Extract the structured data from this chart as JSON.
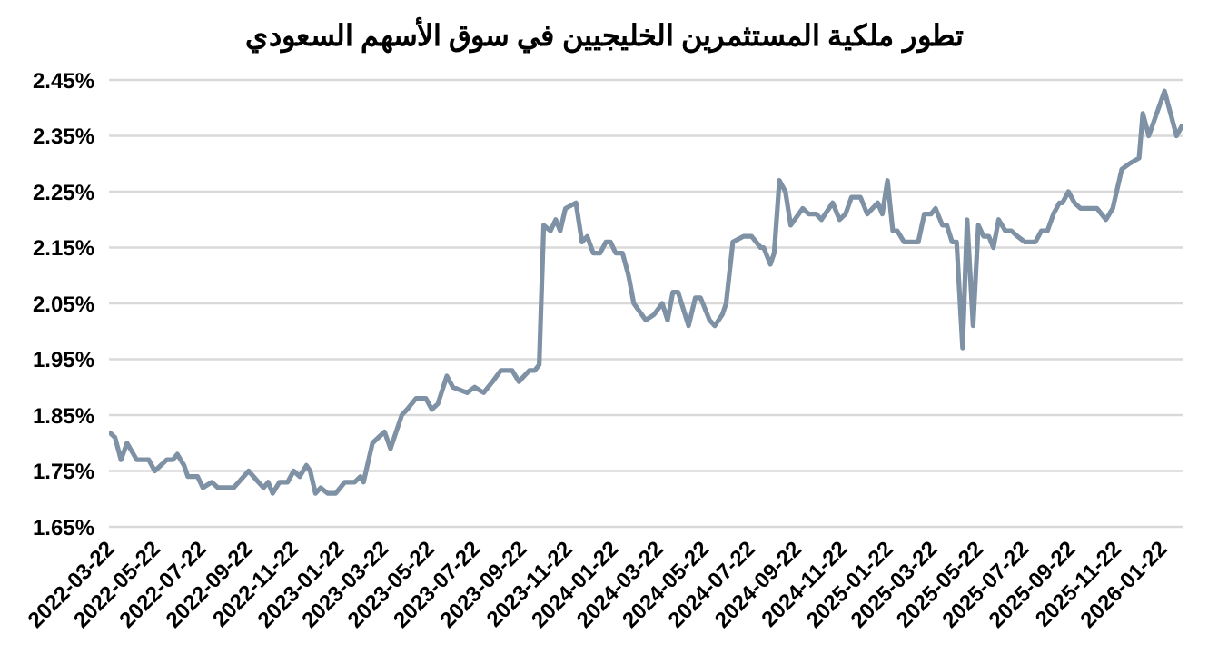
{
  "chart_data": {
    "type": "line",
    "title": "تطور ملكية المستثمرين الخليجيين في سوق الأسهم السعودي",
    "x": [
      "2022-03-20",
      "2022-03-28",
      "2022-04-05",
      "2022-04-13",
      "2022-04-26",
      "2022-05-12",
      "2022-05-20",
      "2022-06-05",
      "2022-06-13",
      "2022-06-19",
      "2022-06-28",
      "2022-07-03",
      "2022-07-16",
      "2022-07-23",
      "2022-08-04",
      "2022-08-12",
      "2022-09-02",
      "2022-09-22",
      "2022-10-05",
      "2022-10-12",
      "2022-10-18",
      "2022-10-24",
      "2022-11-02",
      "2022-11-13",
      "2022-11-21",
      "2022-11-29",
      "2022-12-08",
      "2022-12-13",
      "2022-12-20",
      "2022-12-27",
      "2023-01-05",
      "2023-01-16",
      "2023-01-28",
      "2023-02-10",
      "2023-02-18",
      "2023-02-22",
      "2023-03-06",
      "2023-03-22",
      "2023-03-30",
      "2023-04-14",
      "2023-04-21",
      "2023-05-03",
      "2023-05-16",
      "2023-05-24",
      "2023-06-01",
      "2023-06-13",
      "2023-06-21",
      "2023-07-10",
      "2023-07-20",
      "2023-08-01",
      "2023-08-13",
      "2023-08-24",
      "2023-09-08",
      "2023-09-17",
      "2023-10-01",
      "2023-10-08",
      "2023-10-14",
      "2023-10-20",
      "2023-10-29",
      "2023-11-05",
      "2023-11-11",
      "2023-11-18",
      "2023-12-02",
      "2023-12-10",
      "2023-12-17",
      "2023-12-25",
      "2024-01-03",
      "2024-01-11",
      "2024-01-17",
      "2024-01-24",
      "2024-02-02",
      "2024-02-10",
      "2024-02-17",
      "2024-03-04",
      "2024-03-15",
      "2024-03-26",
      "2024-04-02",
      "2024-04-09",
      "2024-04-16",
      "2024-04-30",
      "2024-05-09",
      "2024-05-16",
      "2024-05-28",
      "2024-06-04",
      "2024-06-14",
      "2024-06-19",
      "2024-06-28",
      "2024-07-12",
      "2024-07-23",
      "2024-08-04",
      "2024-08-08",
      "2024-08-17",
      "2024-08-22",
      "2024-08-29",
      "2024-09-06",
      "2024-09-13",
      "2024-09-29",
      "2024-10-07",
      "2024-10-17",
      "2024-10-24",
      "2024-11-08",
      "2024-11-17",
      "2024-11-25",
      "2024-12-03",
      "2024-12-15",
      "2024-12-24",
      "2025-01-07",
      "2025-01-13",
      "2025-01-20",
      "2025-01-27",
      "2025-02-02",
      "2025-02-11",
      "2025-03-02",
      "2025-03-10",
      "2025-03-19",
      "2025-03-25",
      "2025-04-03",
      "2025-04-09",
      "2025-04-16",
      "2025-04-22",
      "2025-04-30",
      "2025-05-06",
      "2025-05-14",
      "2025-05-21",
      "2025-05-28",
      "2025-06-04",
      "2025-06-10",
      "2025-06-17",
      "2025-06-26",
      "2025-07-04",
      "2025-07-12",
      "2025-07-22",
      "2025-08-05",
      "2025-08-13",
      "2025-08-21",
      "2025-08-29",
      "2025-09-06",
      "2025-09-10",
      "2025-09-18",
      "2025-09-26",
      "2025-10-04",
      "2025-10-26",
      "2025-11-07",
      "2025-11-16",
      "2025-11-28",
      "2025-12-08",
      "2025-12-21",
      "2025-12-26",
      "2026-01-03",
      "2026-01-24",
      "2026-02-09",
      "2026-02-17"
    ],
    "series": [
      {
        "color": "#7f91a4",
        "values": [
          1.82,
          1.81,
          1.77,
          1.8,
          1.77,
          1.77,
          1.75,
          1.77,
          1.77,
          1.78,
          1.76,
          1.74,
          1.74,
          1.72,
          1.73,
          1.72,
          1.72,
          1.75,
          1.73,
          1.72,
          1.73,
          1.71,
          1.73,
          1.73,
          1.75,
          1.74,
          1.76,
          1.75,
          1.71,
          1.72,
          1.71,
          1.71,
          1.73,
          1.73,
          1.74,
          1.73,
          1.8,
          1.82,
          1.79,
          1.85,
          1.86,
          1.88,
          1.88,
          1.86,
          1.87,
          1.92,
          1.9,
          1.89,
          1.9,
          1.89,
          1.91,
          1.93,
          1.93,
          1.91,
          1.93,
          1.93,
          1.94,
          2.19,
          2.18,
          2.2,
          2.18,
          2.22,
          2.23,
          2.16,
          2.17,
          2.14,
          2.14,
          2.16,
          2.16,
          2.14,
          2.14,
          2.1,
          2.05,
          2.02,
          2.03,
          2.05,
          2.02,
          2.07,
          2.07,
          2.01,
          2.06,
          2.06,
          2.02,
          2.01,
          2.03,
          2.05,
          2.16,
          2.17,
          2.17,
          2.15,
          2.15,
          2.12,
          2.14,
          2.27,
          2.25,
          2.19,
          2.22,
          2.21,
          2.21,
          2.2,
          2.23,
          2.2,
          2.21,
          2.24,
          2.24,
          2.21,
          2.23,
          2.21,
          2.27,
          2.18,
          2.18,
          2.16,
          2.16,
          2.21,
          2.21,
          2.22,
          2.19,
          2.19,
          2.16,
          2.16,
          1.97,
          2.2,
          2.01,
          2.19,
          2.17,
          2.17,
          2.15,
          2.2,
          2.18,
          2.18,
          2.17,
          2.16,
          2.16,
          2.18,
          2.18,
          2.21,
          2.23,
          2.23,
          2.25,
          2.23,
          2.22,
          2.22,
          2.2,
          2.22,
          2.29,
          2.3,
          2.31,
          2.39,
          2.35,
          2.43,
          2.35,
          2.37
        ]
      }
    ],
    "xlim": [
      "2022-03-20",
      "2026-02-17"
    ],
    "xticks": [
      "2022-03-22",
      "2022-05-22",
      "2022-07-22",
      "2022-09-22",
      "2022-11-22",
      "2023-01-22",
      "2023-03-22",
      "2023-05-22",
      "2023-07-22",
      "2023-09-22",
      "2023-11-22",
      "2024-01-22",
      "2024-03-22",
      "2024-05-22",
      "2024-07-22",
      "2024-09-22",
      "2024-11-22",
      "2025-01-22",
      "2025-03-22",
      "2025-05-22",
      "2025-07-22",
      "2025-09-22",
      "2025-11-22",
      "2026-01-22"
    ],
    "ylim": [
      1.65,
      2.45
    ],
    "yticks": [
      {
        "value": 1.65,
        "label": "1.65%"
      },
      {
        "value": 1.75,
        "label": "1.75%"
      },
      {
        "value": 1.85,
        "label": "1.85%"
      },
      {
        "value": 1.95,
        "label": "1.95%"
      },
      {
        "value": 2.05,
        "label": "2.05%"
      },
      {
        "value": 2.15,
        "label": "2.15%"
      },
      {
        "value": 2.25,
        "label": "2.25%"
      },
      {
        "value": 2.35,
        "label": "2.35%"
      },
      {
        "value": 2.45,
        "label": "2.45%"
      }
    ],
    "grid": "y",
    "legend": false,
    "marker": "none",
    "line_style": "solid"
  }
}
